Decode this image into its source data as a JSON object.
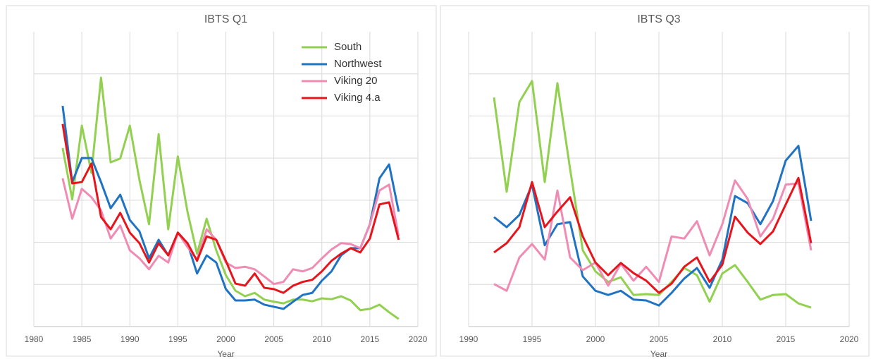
{
  "chart_data": [
    {
      "type": "line",
      "title": "IBTS Q1",
      "x_label": "Year",
      "x": [
        1983,
        1984,
        1985,
        1986,
        1987,
        1988,
        1989,
        1990,
        1991,
        1992,
        1993,
        1994,
        1995,
        1996,
        1997,
        1998,
        1999,
        2000,
        2001,
        2002,
        2003,
        2004,
        2005,
        2006,
        2007,
        2008,
        2009,
        2010,
        2011,
        2012,
        2013,
        2014,
        2015,
        2016,
        2017,
        2018
      ],
      "xlim": [
        1980,
        2020
      ],
      "xticks": [
        1980,
        1985,
        1990,
        1995,
        2000,
        2005,
        2010,
        2015,
        2020
      ],
      "ylim": [
        0,
        7
      ],
      "yticks": [
        0,
        1,
        2,
        3,
        4,
        5,
        6
      ],
      "grid": true,
      "legend": "top-right",
      "series": [
        {
          "name": "South",
          "color": "#92d050",
          "values": [
            4.24,
            3.02,
            4.77,
            3.65,
            5.91,
            3.9,
            3.99,
            4.77,
            3.48,
            2.43,
            4.57,
            2.31,
            4.04,
            2.73,
            1.73,
            2.56,
            1.81,
            1.22,
            0.85,
            0.72,
            0.8,
            0.64,
            0.59,
            0.55,
            0.64,
            0.64,
            0.6,
            0.67,
            0.65,
            0.72,
            0.62,
            0.39,
            0.42,
            0.52,
            0.34,
            0.18
          ]
        },
        {
          "name": "Northwest",
          "color": "#1f73c2",
          "values": [
            5.24,
            3.43,
            4.0,
            4.0,
            3.43,
            2.81,
            3.13,
            2.53,
            2.26,
            1.62,
            2.06,
            1.69,
            2.23,
            1.98,
            1.26,
            1.69,
            1.52,
            0.89,
            0.62,
            0.62,
            0.64,
            0.52,
            0.47,
            0.42,
            0.59,
            0.75,
            0.8,
            1.09,
            1.31,
            1.69,
            1.86,
            1.86,
            2.43,
            3.52,
            3.85,
            2.73
          ]
        },
        {
          "name": "Viking 20",
          "color": "#f08cb4",
          "values": [
            3.52,
            2.56,
            3.27,
            3.07,
            2.76,
            2.09,
            2.4,
            1.81,
            1.62,
            1.36,
            1.68,
            1.52,
            2.23,
            1.89,
            1.59,
            2.31,
            2.06,
            1.52,
            1.39,
            1.42,
            1.36,
            1.19,
            1.01,
            1.06,
            1.36,
            1.31,
            1.39,
            1.62,
            1.83,
            1.98,
            1.96,
            1.86,
            2.43,
            3.23,
            3.37,
            2.14
          ]
        },
        {
          "name": "Viking 4.a",
          "color": "#e8141c",
          "values": [
            4.81,
            3.4,
            3.43,
            3.87,
            2.6,
            2.31,
            2.7,
            2.23,
            1.98,
            1.52,
            1.98,
            1.69,
            2.23,
            1.98,
            1.56,
            2.14,
            2.06,
            1.56,
            1.02,
            0.97,
            1.26,
            0.92,
            0.89,
            0.8,
            0.97,
            1.06,
            1.11,
            1.31,
            1.56,
            1.73,
            1.86,
            1.76,
            2.09,
            2.9,
            2.95,
            2.06
          ]
        }
      ]
    },
    {
      "type": "line",
      "title": "IBTS Q3",
      "x_label": "Year",
      "x": [
        1992,
        1993,
        1994,
        1995,
        1996,
        1997,
        1998,
        1999,
        2000,
        2001,
        2002,
        2003,
        2004,
        2005,
        2006,
        2007,
        2008,
        2009,
        2010,
        2011,
        2012,
        2013,
        2014,
        2015,
        2016,
        2017
      ],
      "xlim": [
        1990,
        2020
      ],
      "xticks": [
        1990,
        1995,
        2000,
        2005,
        2010,
        2015,
        2020
      ],
      "ylim": [
        0,
        7
      ],
      "yticks": [
        0,
        1,
        2,
        3,
        4,
        5,
        6
      ],
      "grid": true,
      "series": [
        {
          "color": "#92d050",
          "values": [
            5.44,
            3.2,
            5.33,
            5.83,
            3.43,
            5.78,
            3.74,
            1.81,
            1.31,
            1.06,
            1.17,
            0.75,
            0.77,
            0.75,
            1.06,
            1.39,
            1.22,
            0.59,
            1.26,
            1.46,
            1.06,
            0.64,
            0.75,
            0.77,
            0.55,
            0.45
          ]
        },
        {
          "color": "#1f73c2",
          "values": [
            2.6,
            2.36,
            2.65,
            3.37,
            1.93,
            2.43,
            2.48,
            1.19,
            0.85,
            0.75,
            0.85,
            0.64,
            0.62,
            0.5,
            0.8,
            1.14,
            1.39,
            0.92,
            1.59,
            3.1,
            2.93,
            2.43,
            2.98,
            3.94,
            4.29,
            2.51
          ]
        },
        {
          "color": "#f08cb4",
          "values": [
            1.01,
            0.85,
            1.64,
            1.96,
            1.59,
            3.23,
            1.64,
            1.34,
            1.52,
            0.97,
            1.49,
            1.09,
            1.42,
            1.06,
            2.14,
            2.09,
            2.5,
            1.69,
            2.43,
            3.47,
            3.03,
            2.14,
            2.56,
            3.37,
            3.4,
            1.81
          ]
        },
        {
          "color": "#e8141c",
          "values": [
            1.76,
            1.98,
            2.36,
            3.43,
            2.36,
            2.73,
            3.07,
            2.14,
            1.52,
            1.22,
            1.51,
            1.27,
            1.09,
            0.8,
            1.02,
            1.42,
            1.64,
            1.06,
            1.47,
            2.61,
            2.23,
            1.96,
            2.26,
            2.9,
            3.53,
            1.98
          ]
        }
      ]
    }
  ]
}
